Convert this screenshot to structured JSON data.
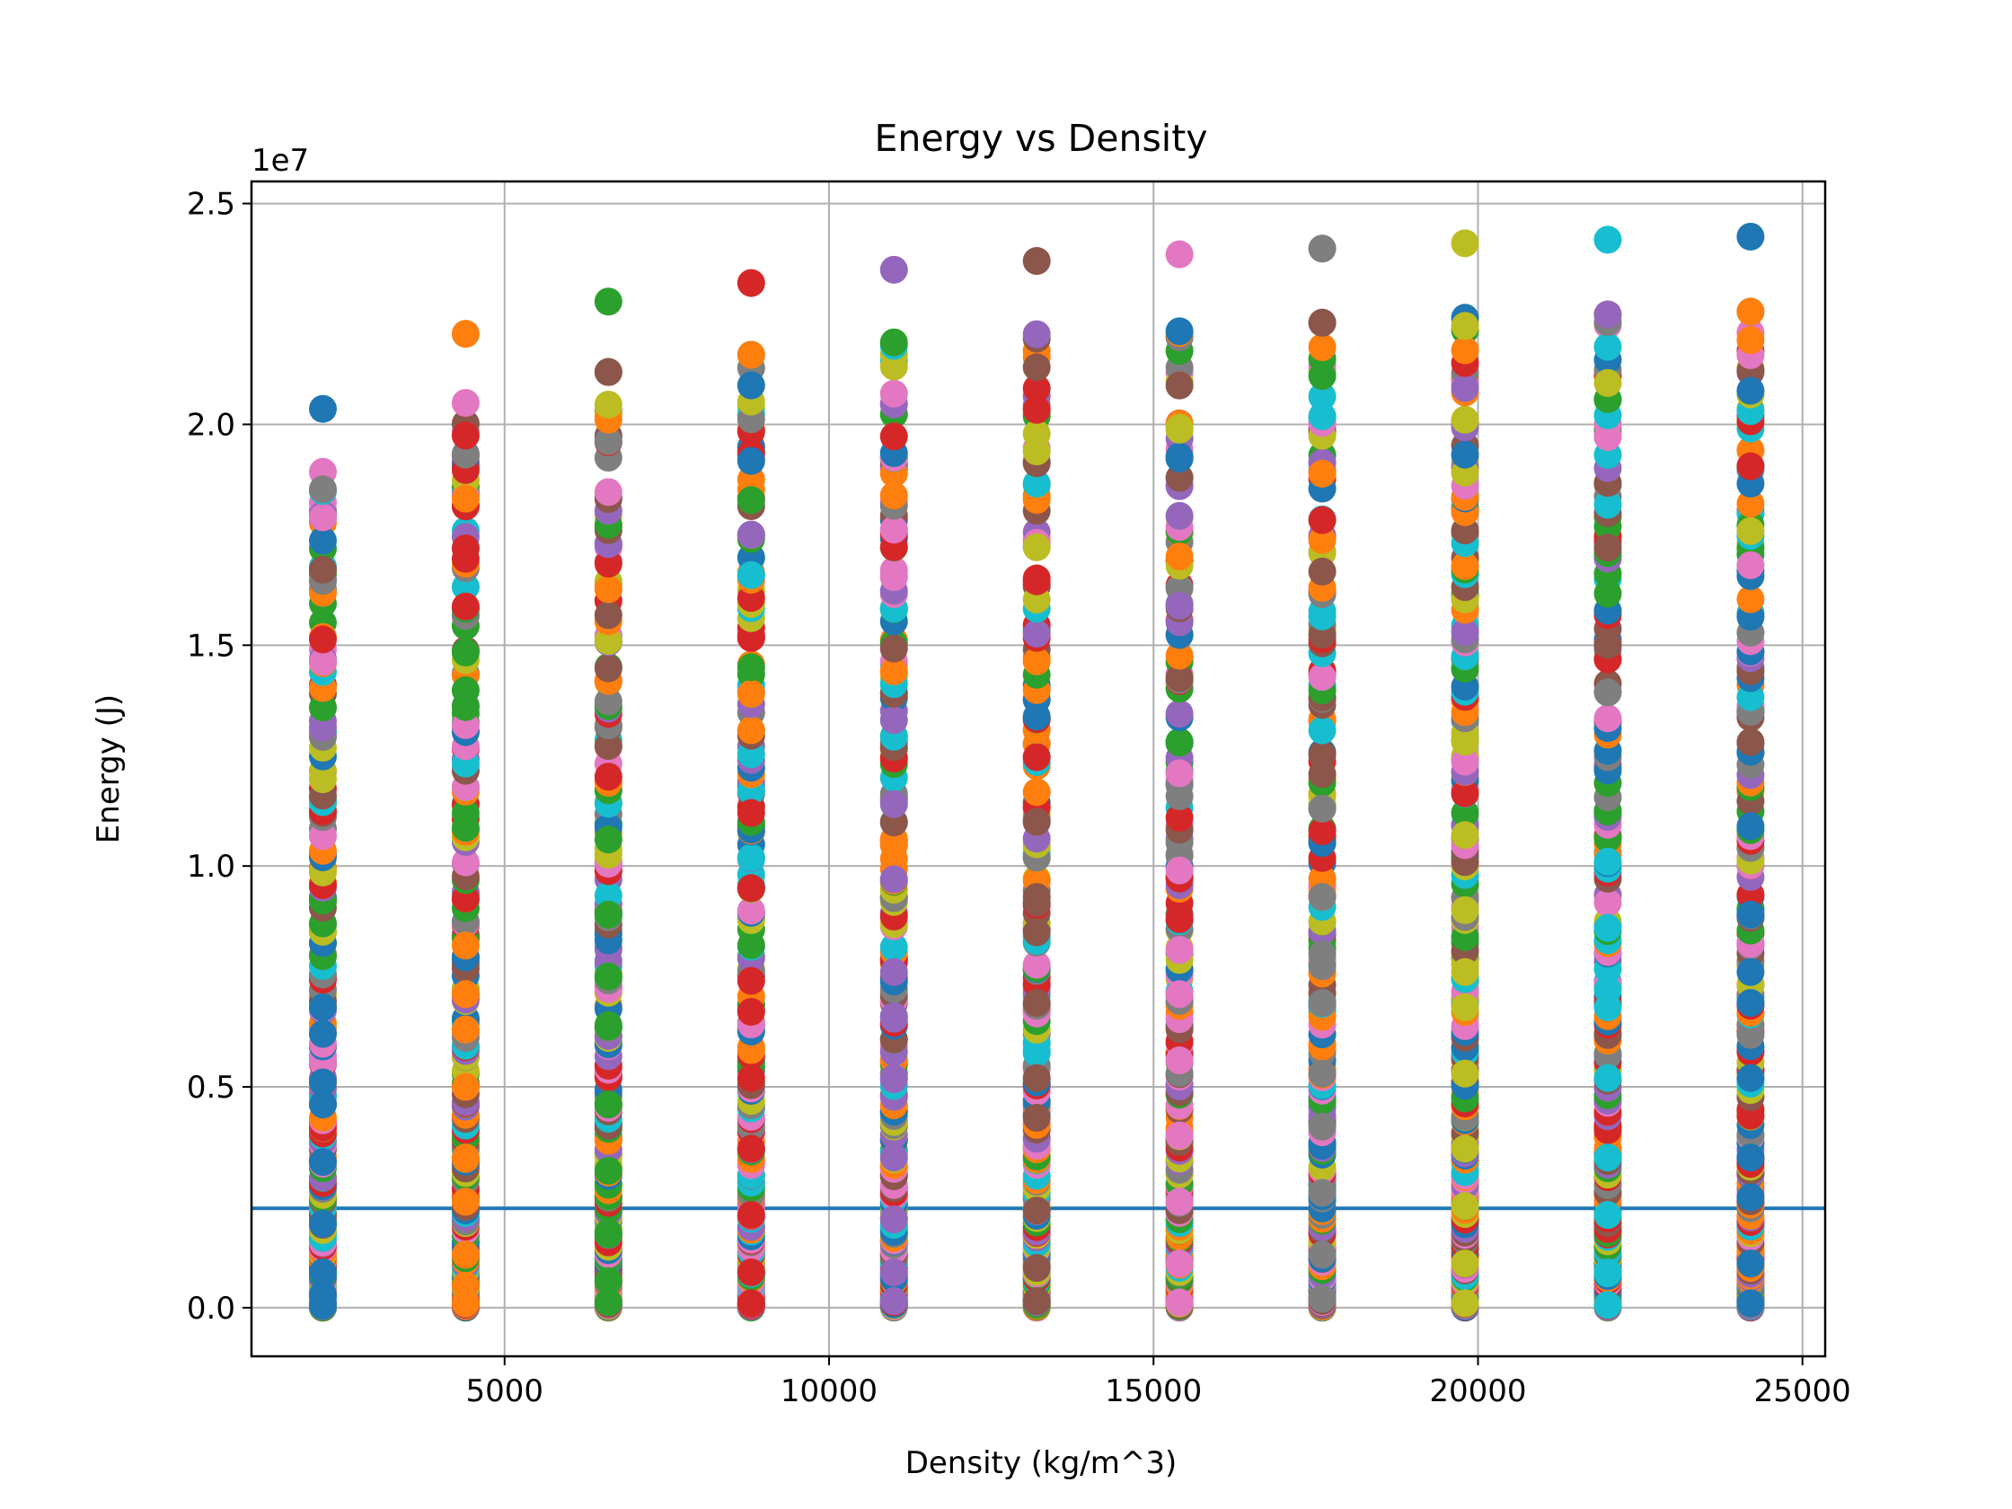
{
  "chart_data": {
    "type": "scatter",
    "title": "Energy vs Density",
    "xlabel": "Density (kg/m^3)",
    "ylabel": "Energy (J)",
    "y_offset_label": "1e7",
    "xlim": [
      1100,
      25350
    ],
    "ylim": [
      -1100000,
      25500000
    ],
    "x_ticks": [
      5000,
      10000,
      15000,
      20000,
      25000
    ],
    "x_tick_labels": [
      "5000",
      "10000",
      "15000",
      "20000",
      "25000"
    ],
    "y_ticks": [
      0,
      5000000,
      10000000,
      15000000,
      20000000,
      25000000
    ],
    "y_tick_labels": [
      "0.0",
      "0.5",
      "1.0",
      "1.5",
      "2.0",
      "2.5"
    ],
    "grid": true,
    "reference_line": {
      "y": 2250000,
      "color": "#1f77b4"
    },
    "palette": [
      "#1f77b4",
      "#ff7f0e",
      "#2ca02c",
      "#d62728",
      "#9467bd",
      "#8c564b",
      "#e377c2",
      "#7f7f7f",
      "#bcbd22",
      "#17becf"
    ],
    "density_columns": [
      2200,
      4400,
      6600,
      8800,
      11000,
      13200,
      15400,
      17600,
      19800,
      22000,
      24200
    ],
    "column_max_energy": [
      20350000,
      22050000,
      22780000,
      23200000,
      23500000,
      23700000,
      23850000,
      23980000,
      24100000,
      24180000,
      24250000
    ],
    "series": [
      {
        "name": "",
        "color": "#1f77b4",
        "x": [
          2200,
          2200,
          2200,
          2200,
          2200,
          2200,
          2200,
          2200,
          2200,
          2200
        ],
        "y": [
          60000,
          300000,
          800000,
          1900000,
          3300000,
          4600000,
          5100000,
          6200000,
          6800000,
          20350000
        ]
      },
      {
        "name": "",
        "color": "#ff7f0e",
        "x": [
          4400,
          4400,
          4400,
          4400,
          4400,
          4400,
          4400,
          4400,
          4400,
          4400
        ],
        "y": [
          100000,
          500000,
          1200000,
          2400000,
          3400000,
          5000000,
          6300000,
          7100000,
          8200000,
          22050000
        ]
      },
      {
        "name": "",
        "color": "#2ca02c",
        "x": [
          6600,
          6600,
          6600,
          6600,
          6600,
          6600,
          6600,
          6600,
          6600,
          6600
        ],
        "y": [
          120000,
          600000,
          1700000,
          3100000,
          4600000,
          6400000,
          7500000,
          8900000,
          10600000,
          22780000
        ]
      },
      {
        "name": "",
        "color": "#d62728",
        "x": [
          8800,
          8800,
          8800,
          8800,
          8800,
          8800,
          8800,
          8800,
          8800,
          8800
        ],
        "y": [
          100000,
          800000,
          2100000,
          3600000,
          5200000,
          6700000,
          7400000,
          9500000,
          11200000,
          23200000
        ]
      },
      {
        "name": "",
        "color": "#9467bd",
        "x": [
          11000,
          11000,
          11000,
          11000,
          11000,
          11000,
          11000,
          11000,
          11000,
          11000
        ],
        "y": [
          150000,
          800000,
          2000000,
          3400000,
          5200000,
          6600000,
          7600000,
          9700000,
          11400000,
          23500000
        ]
      },
      {
        "name": "",
        "color": "#8c564b",
        "x": [
          13200,
          13200,
          13200,
          13200,
          13200,
          13200,
          13200,
          13200,
          13200,
          13200
        ],
        "y": [
          150000,
          900000,
          2200000,
          4300000,
          5200000,
          6900000,
          8500000,
          9300000,
          11000000,
          23700000
        ]
      },
      {
        "name": "",
        "color": "#e377c2",
        "x": [
          15400,
          15400,
          15400,
          15400,
          15400,
          15400,
          15400,
          15400,
          15400,
          15400
        ],
        "y": [
          120000,
          1000000,
          2400000,
          3900000,
          5600000,
          7100000,
          8100000,
          9900000,
          12100000,
          23850000
        ]
      },
      {
        "name": "",
        "color": "#7f7f7f",
        "x": [
          17600,
          17600,
          17600,
          17600,
          17600,
          17600,
          17600,
          17600,
          17600,
          17600
        ],
        "y": [
          200000,
          1200000,
          2600000,
          4100000,
          5300000,
          6900000,
          8000000,
          9300000,
          11300000,
          23980000
        ]
      },
      {
        "name": "",
        "color": "#bcbd22",
        "x": [
          19800,
          19800,
          19800,
          19800,
          19800,
          19800,
          19800,
          19800,
          19800,
          19800
        ],
        "y": [
          100000,
          1000000,
          2300000,
          3600000,
          5300000,
          6800000,
          7600000,
          9000000,
          10700000,
          24100000
        ]
      },
      {
        "name": "",
        "color": "#17becf",
        "x": [
          22000,
          22000,
          22000,
          22000,
          22000,
          22000,
          22000,
          22000,
          22000,
          22000
        ],
        "y": [
          60000,
          800000,
          2100000,
          3400000,
          5200000,
          6800000,
          7200000,
          8600000,
          10100000,
          24180000
        ]
      },
      {
        "name": "",
        "color": "#1f77b4",
        "x": [
          24200,
          24200,
          24200,
          24200,
          24200,
          24200,
          24200,
          24200,
          24200,
          24200
        ],
        "y": [
          100000,
          1000000,
          2500000,
          3400000,
          5200000,
          6900000,
          7600000,
          8900000,
          10900000,
          24250000
        ]
      }
    ]
  }
}
